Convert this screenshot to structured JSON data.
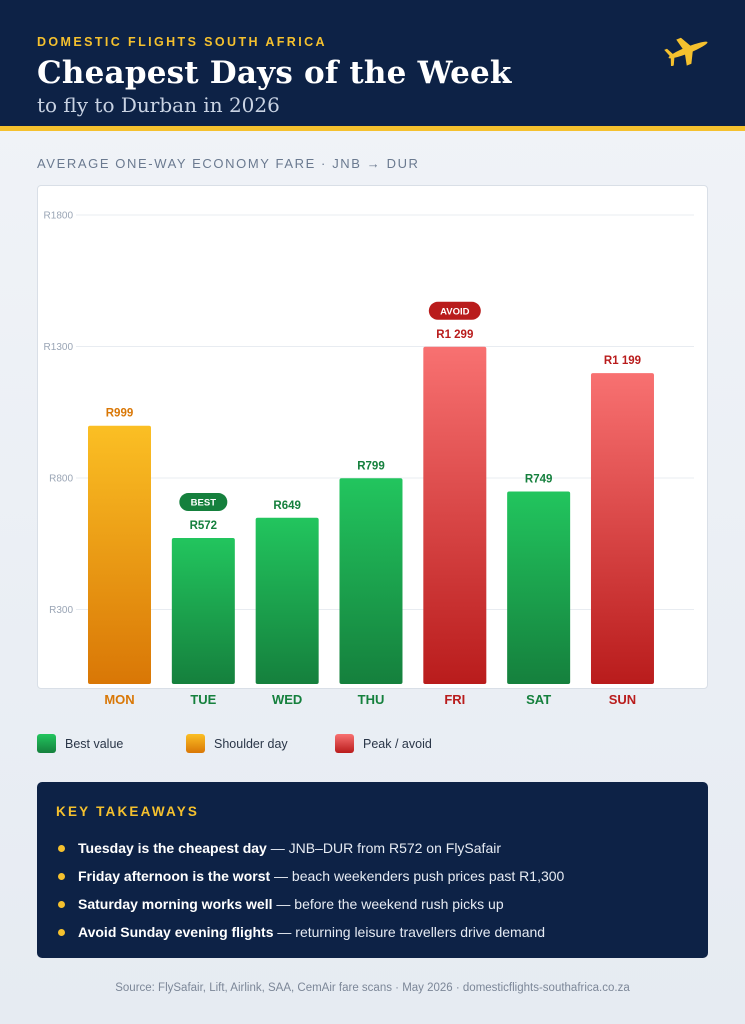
{
  "header": {
    "eyebrow": "DOMESTIC FLIGHTS SOUTH AFRICA",
    "title": "Cheapest Days of the Week",
    "subtitle": "to fly to Durban in 2026",
    "icon": "airplane-icon"
  },
  "section_label": "AVERAGE ONE-WAY ECONOMY FARE · JNB → DUR",
  "colors": {
    "best_top": "#22c55e",
    "best_bottom": "#15803d",
    "best_text": "#15803d",
    "shoulder_top": "#fbbf24",
    "shoulder_bottom": "#d97706",
    "shoulder_text": "#d97706",
    "peak_top": "#f87171",
    "peak_bottom": "#b91c1c",
    "peak_text": "#b91c1c",
    "navy": "#0d2246",
    "gold": "#f5c12e"
  },
  "chart_data": {
    "type": "bar",
    "categories": [
      "MON",
      "TUE",
      "WED",
      "THU",
      "FRI",
      "SAT",
      "SUN"
    ],
    "values": [
      999,
      572,
      649,
      799,
      1299,
      749,
      1199
    ],
    "value_labels": [
      "R999",
      "R572",
      "R649",
      "R799",
      "R1 299",
      "R749",
      "R1 199"
    ],
    "groups": [
      "shoulder",
      "best",
      "best",
      "best",
      "peak",
      "best",
      "peak"
    ],
    "badges": [
      {
        "category": "TUE",
        "text": "BEST"
      },
      {
        "category": "FRI",
        "text": "AVOID"
      }
    ],
    "yticks": [
      300,
      800,
      1300,
      1800
    ],
    "ytick_labels": [
      "R300",
      "R800",
      "R1300",
      "R1800"
    ],
    "ylim": [
      17,
      1800
    ],
    "grid": true,
    "title": "",
    "xlabel": "",
    "ylabel": ""
  },
  "legend": [
    {
      "label": "Best value",
      "group": "best"
    },
    {
      "label": "Shoulder day",
      "group": "shoulder"
    },
    {
      "label": "Peak / avoid",
      "group": "peak"
    }
  ],
  "takeaways": {
    "title": "KEY TAKEAWAYS",
    "items": [
      {
        "bold": "Tuesday is the cheapest day",
        "rest": " — JNB–DUR from R572 on FlySafair"
      },
      {
        "bold": "Friday afternoon is the worst",
        "rest": " — beach weekenders push prices past R1,300"
      },
      {
        "bold": "Saturday morning works well",
        "rest": " — before the weekend rush picks up"
      },
      {
        "bold": "Avoid Sunday evening flights",
        "rest": " — returning leisure travellers drive demand"
      }
    ]
  },
  "source": "Source: FlySafair, Lift, Airlink, SAA, CemAir fare scans · May 2026 · domesticflights-southafrica.co.za"
}
